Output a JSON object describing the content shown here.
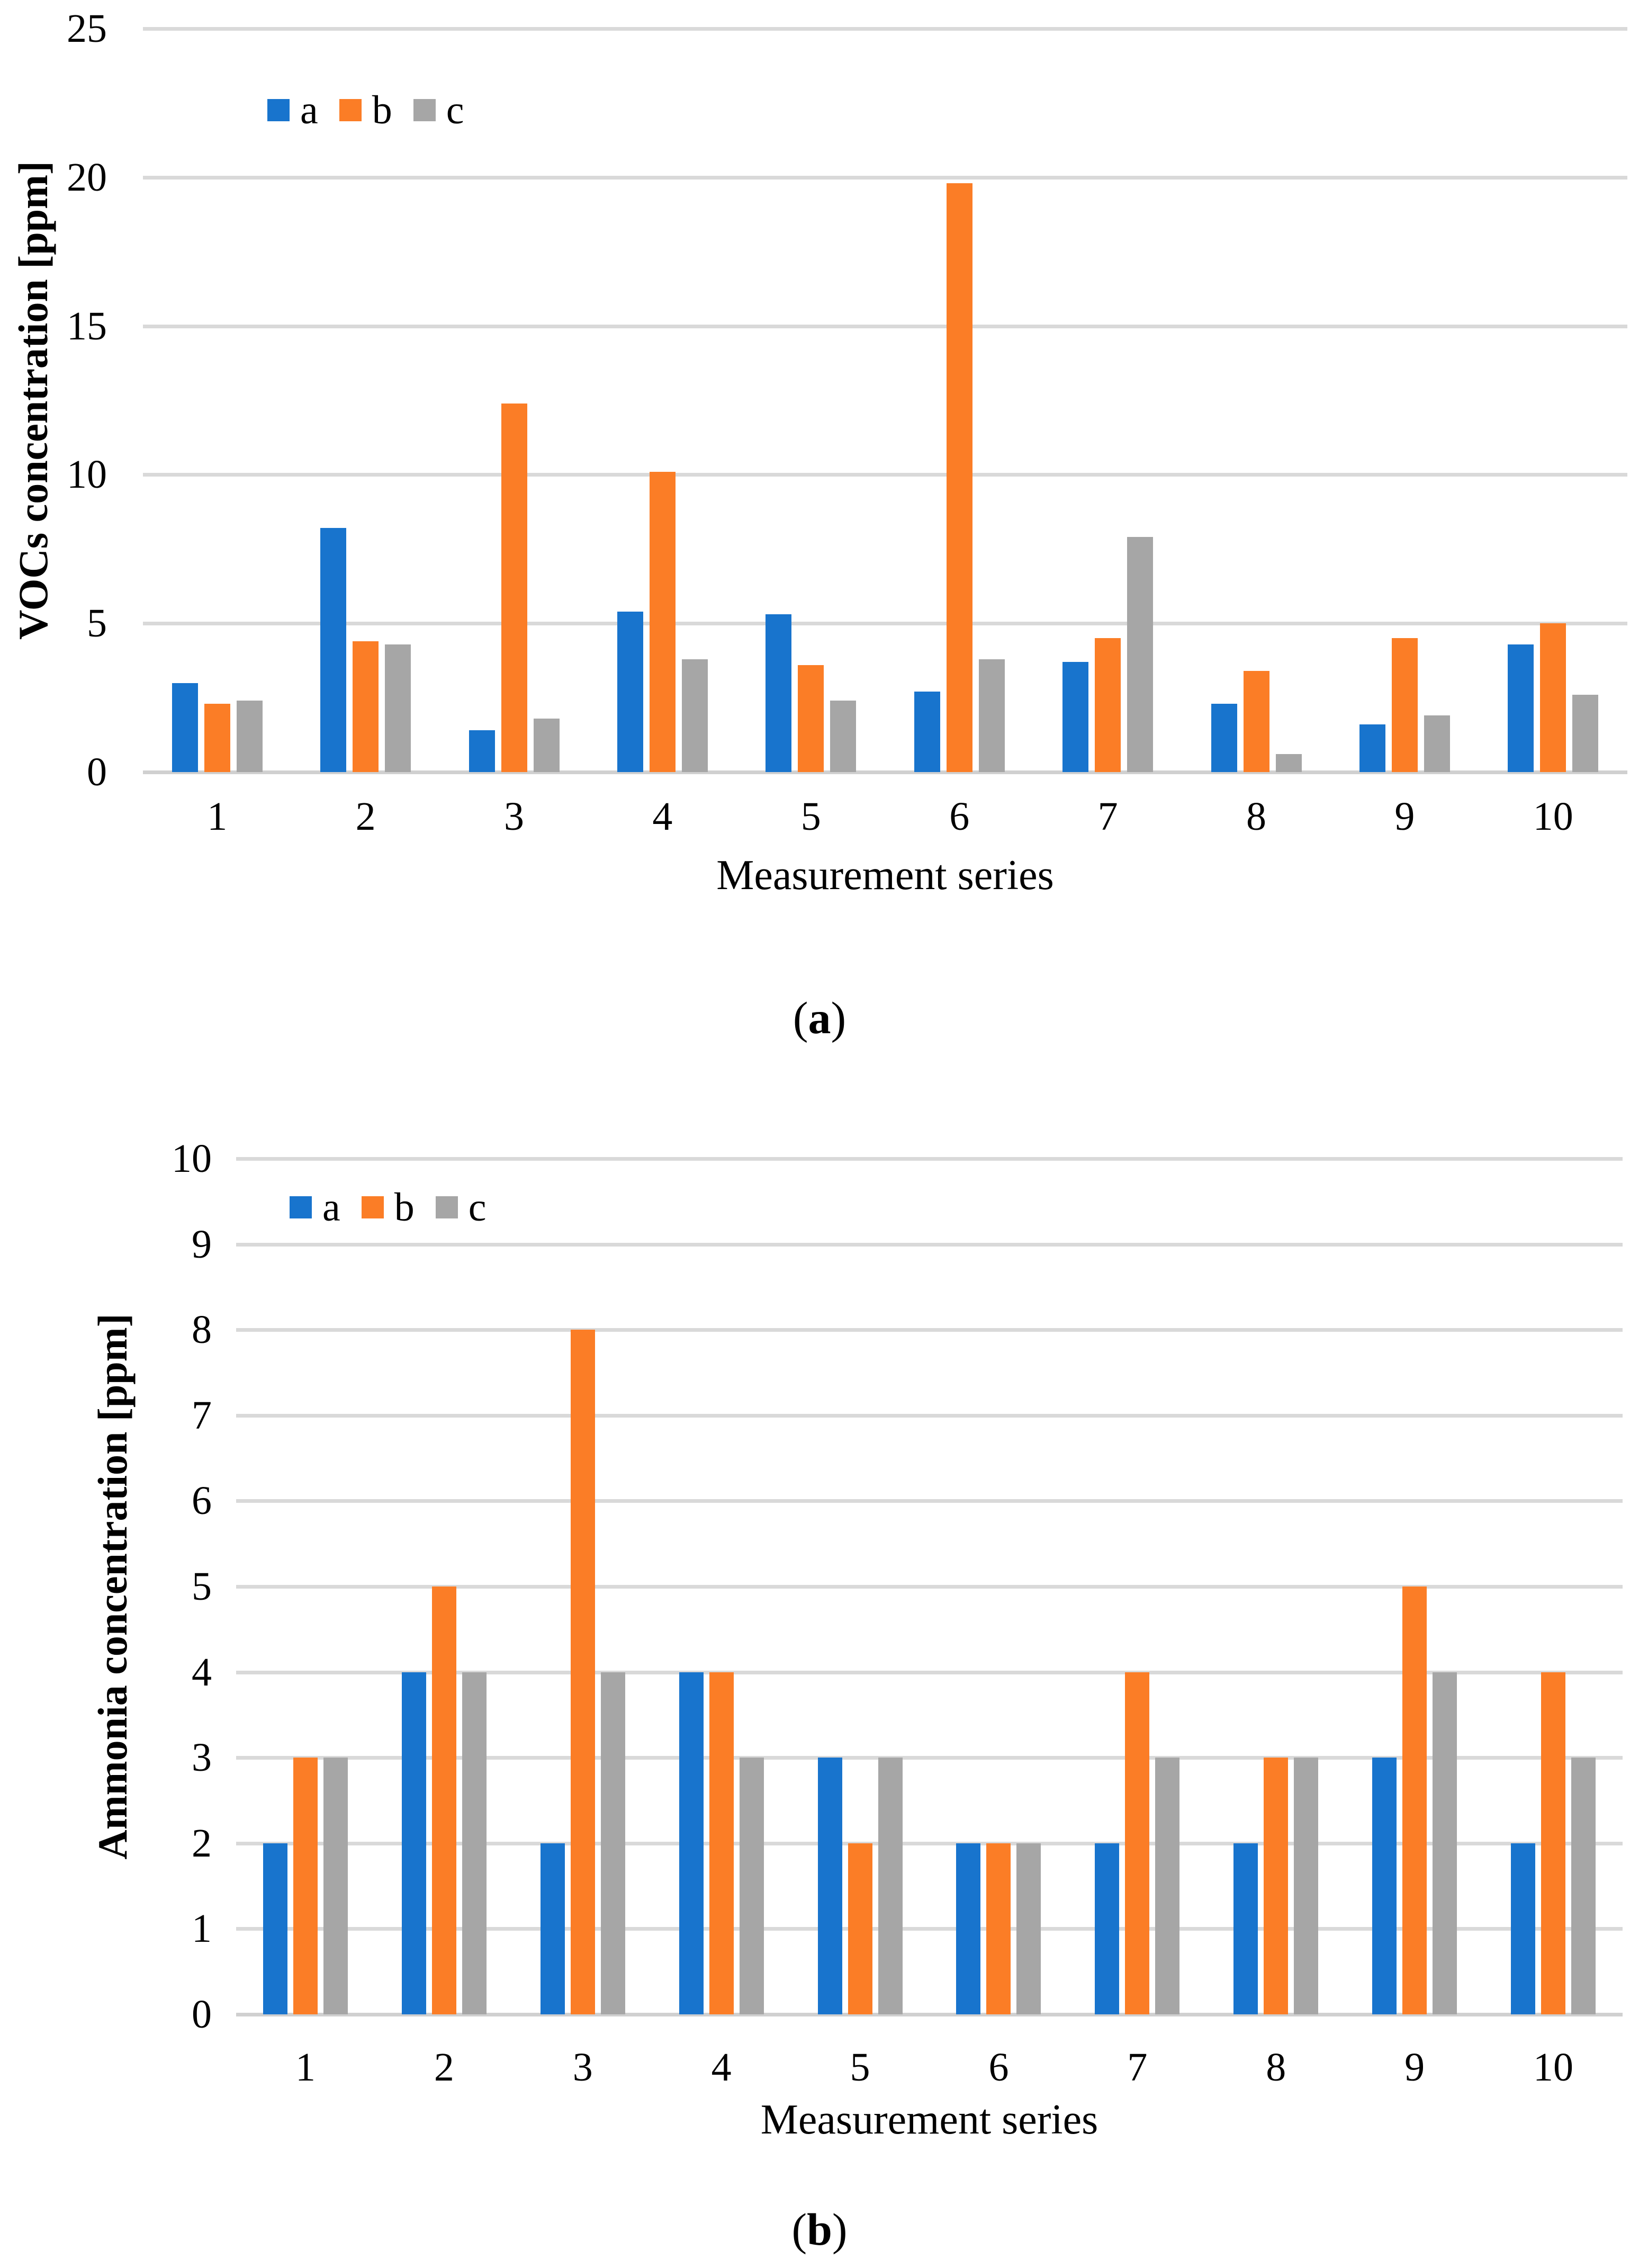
{
  "page": {
    "background": "#ffffff"
  },
  "colors": {
    "series_a": "#1874CD",
    "series_b": "#FB7D26",
    "series_c": "#A6A6A6",
    "gridline": "#D9D9D9"
  },
  "chart_data": [
    {
      "type": "bar",
      "title": "",
      "ylabel": "VOCs concentration [ppm]",
      "xlabel": "Measurement series",
      "caption": {
        "open": "(",
        "letter": "a",
        "close": ")"
      },
      "categories": [
        "1",
        "2",
        "3",
        "4",
        "5",
        "6",
        "7",
        "8",
        "9",
        "10"
      ],
      "ylim": [
        0,
        25
      ],
      "ytick_step": 5,
      "grid": true,
      "legend_position": "inside-top-left",
      "legend": [
        "a",
        "b",
        "c"
      ],
      "series": [
        {
          "name": "a",
          "color": "#1874CD",
          "values": [
            3.0,
            8.2,
            1.4,
            5.4,
            5.3,
            2.7,
            3.7,
            2.3,
            1.6,
            4.3
          ]
        },
        {
          "name": "b",
          "color": "#FB7D26",
          "values": [
            2.3,
            4.4,
            12.4,
            10.1,
            3.6,
            19.8,
            4.5,
            3.4,
            4.5,
            5.0
          ]
        },
        {
          "name": "c",
          "color": "#A6A6A6",
          "values": [
            2.4,
            4.3,
            1.8,
            3.8,
            2.4,
            3.8,
            7.9,
            0.6,
            1.9,
            2.6
          ]
        }
      ]
    },
    {
      "type": "bar",
      "title": "",
      "ylabel": "Ammonia concentration [ppm]",
      "xlabel": "Measurement series",
      "caption": {
        "open": "(",
        "letter": "b",
        "close": ")"
      },
      "categories": [
        "1",
        "2",
        "3",
        "4",
        "5",
        "6",
        "7",
        "8",
        "9",
        "10"
      ],
      "ylim": [
        0,
        10
      ],
      "ytick_step": 1,
      "grid": true,
      "legend_position": "inside-top-left",
      "legend": [
        "a",
        "b",
        "c"
      ],
      "series": [
        {
          "name": "a",
          "color": "#1874CD",
          "values": [
            2,
            4,
            2,
            4,
            3,
            2,
            2,
            2,
            3,
            2
          ]
        },
        {
          "name": "b",
          "color": "#FB7D26",
          "values": [
            3,
            5,
            8,
            4,
            2,
            2,
            4,
            3,
            5,
            4
          ]
        },
        {
          "name": "c",
          "color": "#A6A6A6",
          "values": [
            3,
            4,
            4,
            3,
            3,
            2,
            3,
            3,
            4,
            3
          ]
        }
      ]
    }
  ]
}
